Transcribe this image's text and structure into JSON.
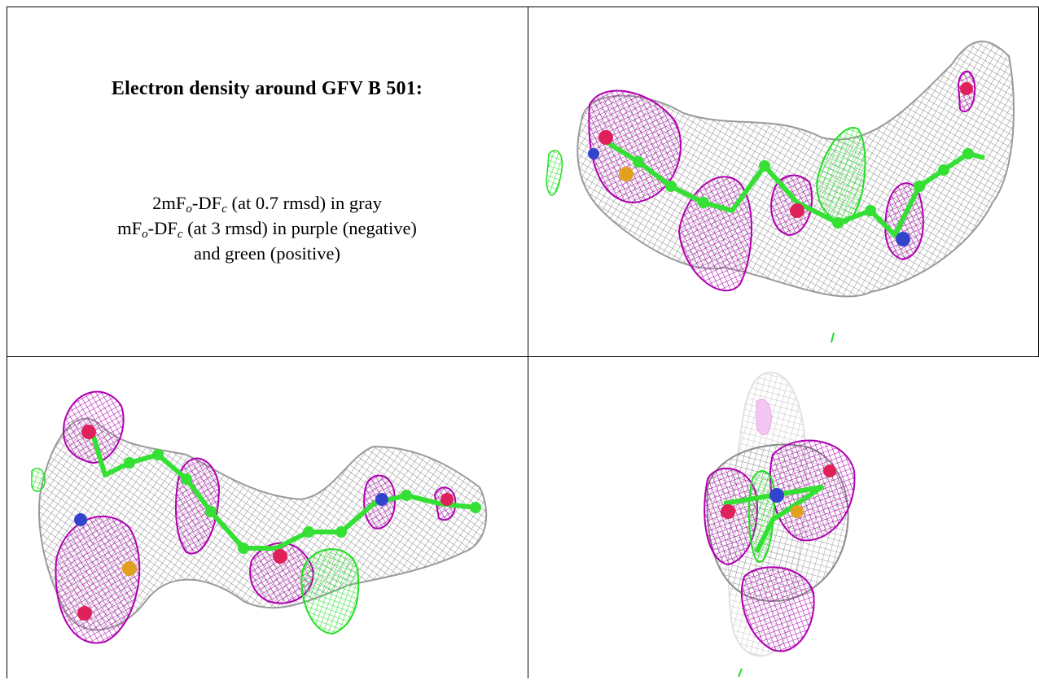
{
  "caption": {
    "title": "Electron density around GFV B 501:",
    "line1": {
      "prefix": "2mF",
      "sub1": "o",
      "mid": "-DF",
      "sub2": "c",
      "suffix": " (at 0.7 rmsd) in gray"
    },
    "line2": {
      "prefix": "mF",
      "sub1": "o",
      "mid": "-DF",
      "sub2": "c",
      "suffix": " (at 3 rmsd) in purple (negative)"
    },
    "line3": "and green (positive)"
  },
  "colors": {
    "map_2fofc": "#8a8a8a",
    "map_negative": "#b000b0",
    "map_positive": "#22e022",
    "carbon": "#33e033",
    "oxygen": "#e0205a",
    "nitrogen": "#3344cc",
    "sulfur": "#e0a020"
  },
  "panels": [
    {
      "name": "view-top-right"
    },
    {
      "name": "view-bottom-left"
    },
    {
      "name": "view-bottom-right"
    }
  ]
}
